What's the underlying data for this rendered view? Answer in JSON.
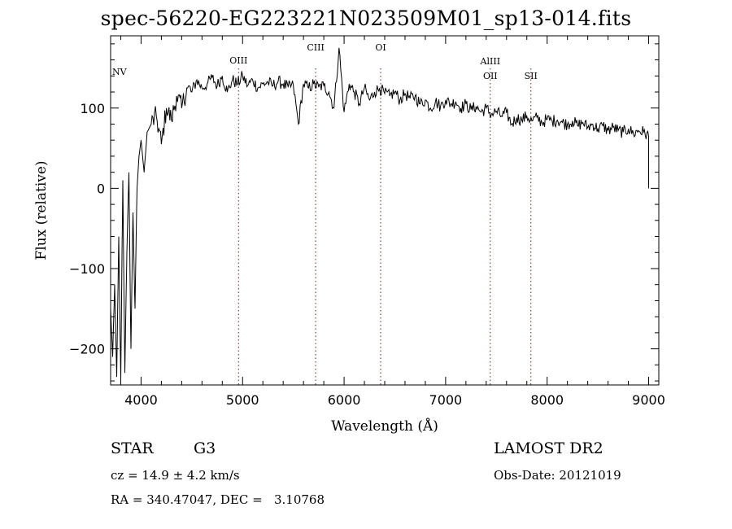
{
  "chart_data": {
    "type": "line",
    "title": "spec-56220-EG223221N023509M01_sp13-014.fits",
    "xlabel": "Wavelength (Å)",
    "ylabel": "Flux (relative)",
    "xlim": [
      3700,
      9100
    ],
    "ylim": [
      -245,
      190
    ],
    "x_ticks": [
      4000,
      5000,
      6000,
      7000,
      8000,
      9000
    ],
    "y_ticks": [
      -200,
      -100,
      0,
      100
    ],
    "grid": false,
    "legend": "none",
    "series": [
      {
        "x": [
          3700,
          3720,
          3740,
          3760,
          3780,
          3800,
          3820,
          3840,
          3860,
          3880,
          3900,
          3920,
          3940,
          3960,
          3980,
          4000,
          4030,
          4060,
          4100,
          4150,
          4200,
          4250,
          4300,
          4350,
          4400,
          4450,
          4500,
          4550,
          4600,
          4650,
          4700,
          4750,
          4800,
          4850,
          4900,
          4950,
          5000,
          5050,
          5100,
          5150,
          5200,
          5250,
          5300,
          5350,
          5400,
          5450,
          5500,
          5550,
          5600,
          5650,
          5700,
          5750,
          5800,
          5850,
          5900,
          5950,
          6000,
          6050,
          6100,
          6150,
          6200,
          6250,
          6300,
          6350,
          6400,
          6450,
          6500,
          6550,
          6600,
          6650,
          6700,
          6750,
          6800,
          6850,
          6900,
          6950,
          7000,
          7050,
          7100,
          7150,
          7200,
          7250,
          7300,
          7350,
          7400,
          7450,
          7500,
          7550,
          7600,
          7650,
          7700,
          7750,
          7800,
          7850,
          7900,
          7950,
          8000,
          8050,
          8100,
          8150,
          8200,
          8250,
          8300,
          8350,
          8400,
          8450,
          8500,
          8550,
          8600,
          8650,
          8700,
          8750,
          8800,
          8850,
          8900,
          8950,
          9000
        ],
        "y": [
          -150,
          -210,
          -120,
          -235,
          -60,
          -240,
          10,
          -230,
          -80,
          20,
          -200,
          -30,
          -150,
          0,
          40,
          60,
          20,
          70,
          80,
          90,
          55,
          100,
          85,
          115,
          100,
          125,
          120,
          135,
          125,
          130,
          138,
          128,
          140,
          120,
          135,
          130,
          140,
          128,
          135,
          125,
          130,
          132,
          128,
          133,
          130,
          126,
          128,
          80,
          130,
          125,
          130,
          126,
          128,
          120,
          100,
          175,
          95,
          130,
          120,
          105,
          125,
          110,
          120,
          125,
          118,
          115,
          120,
          110,
          118,
          112,
          115,
          105,
          110,
          100,
          108,
          102,
          110,
          105,
          108,
          100,
          105,
          98,
          102,
          95,
          100,
          92,
          96,
          90,
          94,
          80,
          88,
          85,
          90,
          84,
          88,
          82,
          86,
          84,
          85,
          82,
          80,
          84,
          78,
          82,
          76,
          80,
          74,
          78,
          72,
          76,
          72,
          70,
          74,
          68,
          72,
          70,
          65
        ]
      }
    ],
    "line_markers": [
      {
        "label": "NV",
        "x": 3710,
        "color": "#ffffff"
      },
      {
        "label": "OIII",
        "x": 4960,
        "color": "#6b2020"
      },
      {
        "label": "CIII",
        "x": 5720,
        "color": "#6b2020"
      },
      {
        "label": "OI",
        "x": 6360,
        "color": "#6b2020"
      },
      {
        "label": "AlIII",
        "x": 7440,
        "color": "#6b2020"
      },
      {
        "label": "OII",
        "x": 7440,
        "color": "#6b2020"
      },
      {
        "label": "SII",
        "x": 7840,
        "color": "#6b2020"
      }
    ]
  },
  "info": {
    "object_type": "STAR",
    "subclass": "G3",
    "survey": "LAMOST DR2",
    "cz": "cz = 14.9 ± 4.2 km/s",
    "obs_date": "Obs-Date: 20121019",
    "radec": "RA = 340.47047, DEC =   3.10768"
  }
}
